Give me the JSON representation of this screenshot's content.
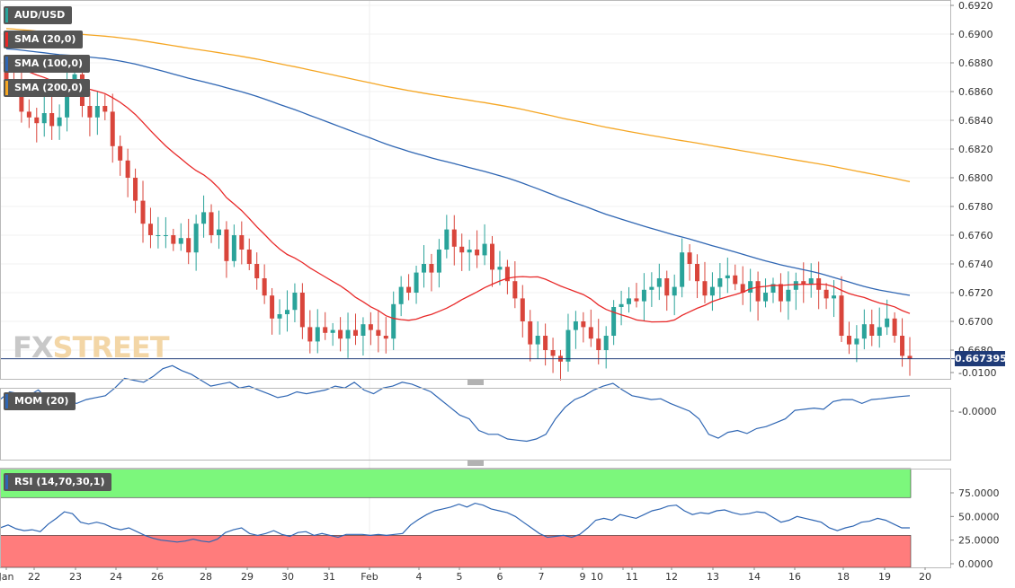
{
  "chart_data": [
    {
      "type": "candlestick",
      "symbol": "AUD/USD",
      "legend": [
        "AUD/USD",
        "SMA (20,0)",
        "SMA (100,0)",
        "SMA (200,0)"
      ],
      "series_colors": {
        "sma20": "#e82828",
        "sma100": "#2f66b3",
        "sma200": "#f5a623",
        "up": "#2aa39a",
        "down": "#d9453b"
      },
      "ylim": [
        0.6665,
        0.6925
      ],
      "yticks": [
        "0.6920",
        "0.6900",
        "0.6880",
        "0.6860",
        "0.6840",
        "0.6820",
        "0.6800",
        "0.6780",
        "0.6760",
        "0.6740",
        "0.6720",
        "0.6700",
        "0.6680"
      ],
      "current_price": "0.667395",
      "current_price_value": 0.667395,
      "closes": [
        0.6868,
        0.6864,
        0.6846,
        0.6842,
        0.6838,
        0.6845,
        0.6836,
        0.6842,
        0.6868,
        0.6872,
        0.685,
        0.6842,
        0.685,
        0.6846,
        0.6822,
        0.6812,
        0.68,
        0.6784,
        0.6768,
        0.676,
        0.676,
        0.676,
        0.6754,
        0.6758,
        0.6748,
        0.6768,
        0.6776,
        0.676,
        0.6764,
        0.6742,
        0.676,
        0.675,
        0.674,
        0.673,
        0.6718,
        0.6702,
        0.6705,
        0.6708,
        0.672,
        0.6696,
        0.6686,
        0.6696,
        0.6692,
        0.6694,
        0.6688,
        0.6694,
        0.669,
        0.6698,
        0.6694,
        0.669,
        0.6688,
        0.6712,
        0.6724,
        0.672,
        0.6734,
        0.674,
        0.6734,
        0.675,
        0.6764,
        0.6752,
        0.6748,
        0.675,
        0.6746,
        0.6754,
        0.6736,
        0.6738,
        0.6728,
        0.6716,
        0.67,
        0.6684,
        0.669,
        0.668,
        0.6676,
        0.6672,
        0.6694,
        0.67,
        0.6696,
        0.6688,
        0.668,
        0.669,
        0.671,
        0.6712,
        0.6716,
        0.6714,
        0.6722,
        0.6724,
        0.673,
        0.6718,
        0.6724,
        0.6748,
        0.674,
        0.6728,
        0.6718,
        0.6724,
        0.673,
        0.6732,
        0.6726,
        0.672,
        0.6728,
        0.6714,
        0.672,
        0.6726,
        0.6714,
        0.6722,
        0.6728,
        0.6726,
        0.673,
        0.6722,
        0.6716,
        0.6718,
        0.669,
        0.6684,
        0.6688,
        0.6698,
        0.669,
        0.6696,
        0.6702,
        0.669,
        0.6676,
        0.6674
      ]
    },
    {
      "type": "line",
      "indicator": "MOM (20)",
      "color": "#2f66b3",
      "yticks": [
        "-0.0000",
        "-0.0100"
      ],
      "values": [
        -0.003,
        -0.005,
        -0.0045,
        -0.004,
        -0.0055,
        -0.003,
        -0.0025,
        -0.0028,
        -0.002,
        -0.003,
        -0.0035,
        -0.004,
        -0.006,
        -0.0085,
        -0.008,
        -0.0075,
        -0.009,
        -0.011,
        -0.0118,
        -0.0105,
        -0.0095,
        -0.008,
        -0.0065,
        -0.007,
        -0.0075,
        -0.006,
        -0.0065,
        -0.0055,
        -0.0045,
        -0.0035,
        -0.004,
        -0.005,
        -0.0045,
        -0.005,
        -0.0055,
        -0.0065,
        -0.006,
        -0.0075,
        -0.0055,
        -0.0045,
        -0.006,
        -0.0065,
        -0.0075,
        -0.007,
        -0.006,
        -0.005,
        -0.003,
        -0.001,
        0.001,
        0.002,
        0.005,
        0.006,
        0.006,
        0.0072,
        0.0075,
        0.0078,
        0.0072,
        0.006,
        0.002,
        -0.001,
        -0.003,
        -0.004,
        -0.0055,
        -0.0065,
        -0.0072,
        -0.0055,
        -0.004,
        -0.0035,
        -0.003,
        -0.0032,
        -0.002,
        -0.001,
        0.0,
        0.002,
        0.006,
        0.007,
        0.0055,
        0.005,
        0.0058,
        0.0045,
        0.004,
        0.003,
        0.002,
        -0.0002,
        -0.0005,
        -0.0008,
        -0.0005,
        -0.0025,
        -0.003,
        -0.003,
        -0.002,
        -0.003,
        -0.0032,
        -0.0035,
        -0.0038,
        -0.004
      ]
    },
    {
      "type": "line",
      "indicator": "RSI (14,70,30,1)",
      "color": "#2f66b3",
      "overbought": 70,
      "oversold": 30,
      "zone_colors": {
        "overbought": "#7cf77c",
        "oversold": "#ff7c7c"
      },
      "ylim": [
        0,
        100
      ],
      "yticks": [
        "75.0000",
        "50.0000",
        "25.0000",
        "0.0000"
      ],
      "values": [
        38,
        41,
        37,
        35,
        36,
        34,
        42,
        48,
        55,
        53,
        44,
        42,
        44,
        42,
        38,
        36,
        38,
        34,
        30,
        27,
        25,
        24,
        23,
        24,
        26,
        24,
        23,
        26,
        33,
        36,
        38,
        32,
        30,
        32,
        35,
        31,
        29,
        33,
        34,
        30,
        32,
        30,
        28,
        31,
        31,
        31,
        30,
        31,
        30,
        31,
        32,
        41,
        47,
        52,
        56,
        58,
        60,
        63,
        60,
        64,
        62,
        58,
        56,
        54,
        50,
        44,
        38,
        32,
        28,
        29,
        30,
        28,
        31,
        38,
        46,
        48,
        46,
        52,
        50,
        48,
        52,
        56,
        58,
        61,
        62,
        56,
        52,
        54,
        53,
        56,
        57,
        54,
        52,
        53,
        55,
        54,
        49,
        44,
        46,
        50,
        48,
        46,
        44,
        38,
        35,
        38,
        40,
        44,
        45,
        48,
        46,
        42,
        38,
        38
      ]
    }
  ],
  "x_axis": {
    "labels": [
      "Jan",
      "22",
      "23",
      "24",
      "26",
      "28",
      "29",
      "30",
      "31",
      "Feb",
      "4",
      "5",
      "6",
      "7",
      "9",
      "10",
      "11",
      "12",
      "13",
      "14",
      "16",
      "18",
      "19",
      "20"
    ]
  },
  "logo": {
    "part1": "FX",
    "part2": "STREET"
  }
}
